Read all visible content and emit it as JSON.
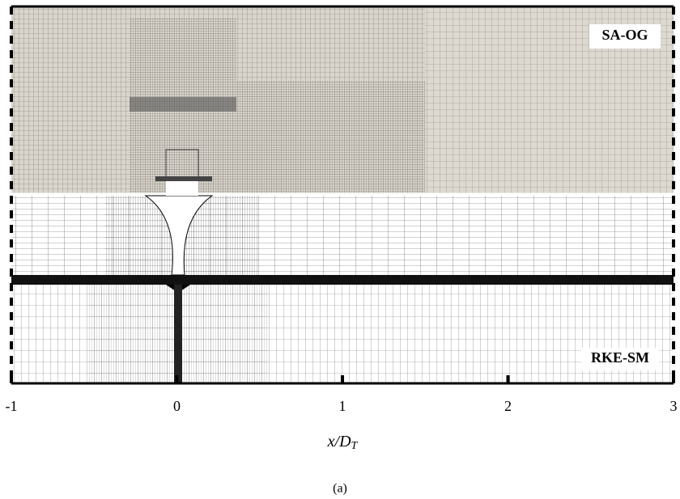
{
  "figure": {
    "panel_labels": {
      "top": "SA-OG",
      "bottom": "RKE-SM"
    },
    "x_axis": {
      "label": "x/D",
      "label_subscript": "T",
      "xlim": [
        -1,
        3
      ],
      "ticks": [
        -1,
        0,
        1,
        2,
        3
      ]
    },
    "caption": "(a)"
  }
}
